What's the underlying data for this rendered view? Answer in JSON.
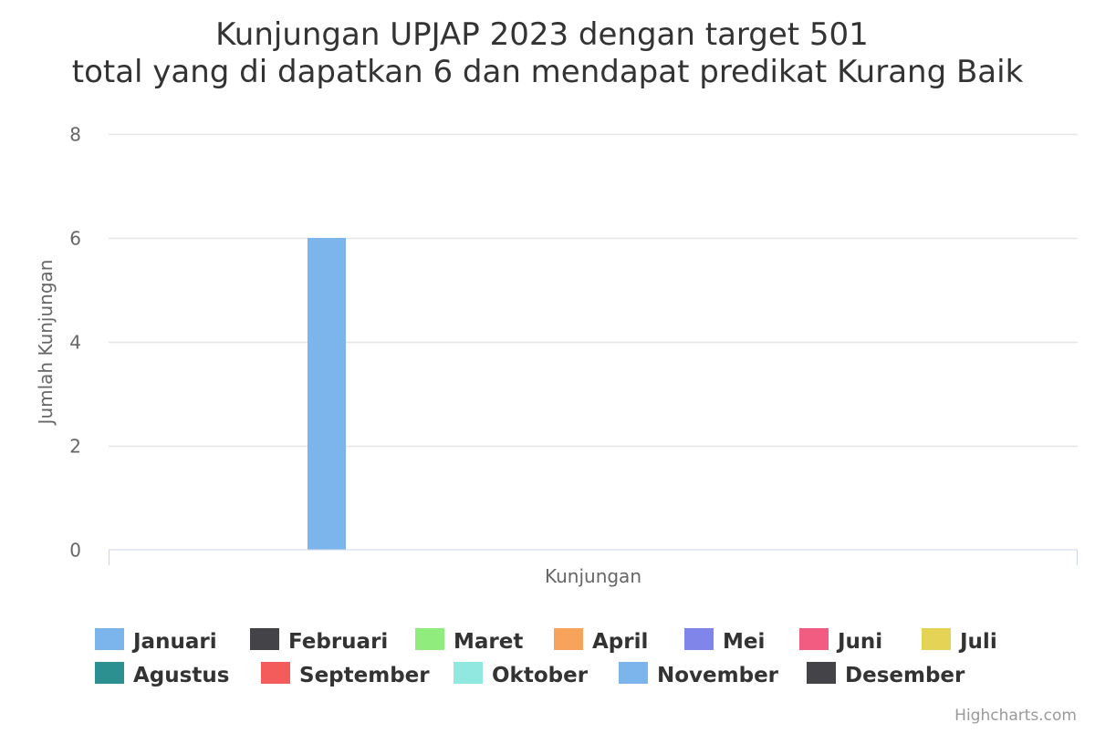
{
  "chart_data": {
    "type": "bar",
    "title_line1": "Kunjungan UPJAP 2023 dengan target 501",
    "title_line2": "total yang di dapatkan 6 dan mendapat predikat Kurang Baik",
    "xlabel": "Kunjungan",
    "ylabel": "Jumlah Kunjungan",
    "categories": [
      "Kunjungan"
    ],
    "ylim": [
      0,
      8
    ],
    "yticks": [
      "0",
      "2",
      "4",
      "6",
      "8"
    ],
    "grid": true,
    "legend_position": "bottom",
    "series": [
      {
        "name": "Januari",
        "color": "#7cb5ec",
        "values": [
          6
        ]
      },
      {
        "name": "Februari",
        "color": "#434348",
        "values": [
          0
        ]
      },
      {
        "name": "Maret",
        "color": "#90ed7d",
        "values": [
          0
        ]
      },
      {
        "name": "April",
        "color": "#f7a35c",
        "values": [
          0
        ]
      },
      {
        "name": "Mei",
        "color": "#8085e9",
        "values": [
          0
        ]
      },
      {
        "name": "Juni",
        "color": "#f15c80",
        "values": [
          0
        ]
      },
      {
        "name": "Juli",
        "color": "#e4d354",
        "values": [
          0
        ]
      },
      {
        "name": "Agustus",
        "color": "#2b908f",
        "values": [
          0
        ]
      },
      {
        "name": "September",
        "color": "#f45b5b",
        "values": [
          0
        ]
      },
      {
        "name": "Oktober",
        "color": "#91e8e1",
        "values": [
          0
        ]
      },
      {
        "name": "November",
        "color": "#7cb5ec",
        "values": [
          0
        ]
      },
      {
        "name": "Desember",
        "color": "#434348",
        "values": [
          0
        ]
      }
    ]
  },
  "credits": "Highcharts.com"
}
